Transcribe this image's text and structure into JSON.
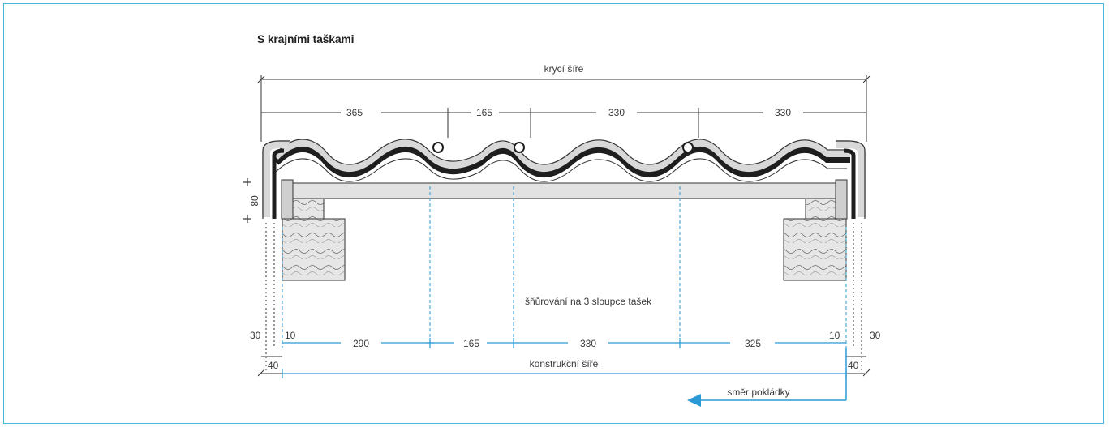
{
  "title": "S krajními taškami",
  "labels": {
    "top_width": "krycí šíře",
    "top_segments": [
      "365",
      "165",
      "330",
      "330"
    ],
    "height_dim": "80",
    "lath_note": "šňůrování na 3 sloupce tašek",
    "bottom_left_outer": "30",
    "bottom_left_inner": "10",
    "bottom_segments": [
      "290",
      "165",
      "330",
      "325"
    ],
    "bottom_right_inner": "10",
    "bottom_right_outer": "30",
    "left_offset": "40",
    "right_offset": "40",
    "construction_width": "konstrukční šíře",
    "direction": "směr pokládky"
  },
  "colors": {
    "frame": "#48b7e0",
    "dimension_blue": "#2a9ad6",
    "tile_fill": "#d8d8d8",
    "tile_dark": "#1e1e1e",
    "batten": "#e2e2e2",
    "rafter": "#e6e6e6"
  }
}
